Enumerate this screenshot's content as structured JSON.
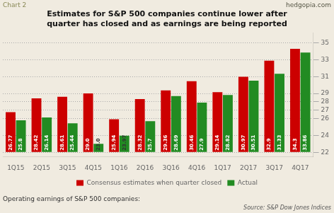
{
  "chart_data": {
    "type": "bar",
    "title": "Estimates for S&P 500 companies continue lower after\nquarter has closed and as earnings are being reported",
    "categories": [
      "1Q15",
      "2Q15",
      "3Q15",
      "4Q15",
      "1Q16",
      "2Q16",
      "3Q16",
      "4Q16",
      "1Q17",
      "2Q17",
      "3Q17",
      "4Q17"
    ],
    "series": [
      {
        "name": "Consensus estimates when quarter closed",
        "color": "#cc0000",
        "values": [
          26.77,
          28.42,
          28.61,
          29.0,
          25.94,
          28.32,
          29.36,
          30.46,
          29.14,
          30.97,
          32.9,
          34.3
        ],
        "value_labels": [
          "26.77",
          "28.42",
          "28.61",
          "29.0",
          "25.94",
          "28.32",
          "29.36",
          "30.46",
          "29.14",
          "30.97",
          "32.9",
          "34.3"
        ]
      },
      {
        "name": "Actual",
        "color": "#228B22",
        "values": [
          25.8,
          26.14,
          25.44,
          23.0,
          23.97,
          25.7,
          28.69,
          27.9,
          28.82,
          30.51,
          31.33,
          33.86
        ],
        "value_labels": [
          "25.8",
          "26.14",
          "25.44",
          "23.0",
          "23.97",
          "25.7",
          "28.69",
          "27.9",
          "28.82",
          "30.51",
          "31.33",
          "33.86"
        ]
      }
    ],
    "baseline": 22,
    "ylim": [
      21.5,
      36.2
    ],
    "yticks": [
      22,
      24,
      26,
      27,
      28,
      29,
      31,
      33,
      35
    ],
    "grid": true,
    "legend": "bottom",
    "data_labels": true,
    "annotations": [
      "Chart 2",
      "hedgopia.com",
      "Operating earnings of S&P 500 companies:",
      "Source: S&P Dow Jones Indices"
    ]
  }
}
